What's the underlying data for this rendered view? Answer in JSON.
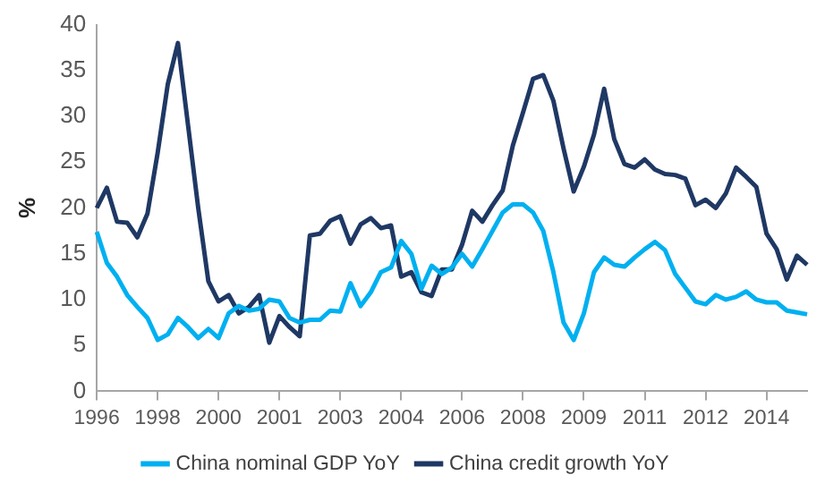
{
  "chart_data": {
    "type": "line",
    "ylabel": "%",
    "categories": [
      "1996",
      null,
      null,
      null,
      null,
      null,
      "1998",
      null,
      null,
      null,
      null,
      null,
      "2000",
      null,
      null,
      null,
      null,
      null,
      "2001",
      null,
      null,
      null,
      null,
      null,
      "2003",
      null,
      null,
      null,
      null,
      null,
      "2004",
      null,
      null,
      null,
      null,
      null,
      "2006",
      null,
      null,
      null,
      null,
      null,
      "2008",
      null,
      null,
      null,
      null,
      null,
      "2009",
      null,
      null,
      null,
      null,
      null,
      "2011",
      null,
      null,
      null,
      null,
      null,
      "2012",
      null,
      null,
      null,
      null,
      null,
      "2014",
      null,
      null,
      null,
      null
    ],
    "series": [
      {
        "name": "China nominal GDP YoY",
        "color": "#00b0f0",
        "values": [
          17.4,
          14,
          12.5,
          10.5,
          9.2,
          8,
          5.6,
          6.2,
          8,
          7,
          5.8,
          6.8,
          5.8,
          8.5,
          9.3,
          8.8,
          9,
          10,
          9.8,
          8,
          7.5,
          7.8,
          7.8,
          8.8,
          8.7,
          11.8,
          9.3,
          10.8,
          13,
          13.5,
          16.4,
          15,
          11.2,
          13.7,
          12.8,
          13.5,
          15,
          13.6,
          15.5,
          17.5,
          19.5,
          20.4,
          20.4,
          19.5,
          17.5,
          13,
          7.5,
          5.6,
          8.5,
          13,
          14.6,
          13.8,
          13.6,
          14.6,
          15.5,
          16.3,
          15.4,
          12.8,
          11.3,
          9.8,
          9.5,
          10.5,
          10,
          10.3,
          10.9,
          10,
          9.7,
          9.7,
          8.8,
          8.6,
          8.4
        ]
      },
      {
        "name": "China credit growth YoY",
        "color": "#1f3864",
        "values": [
          20,
          22.2,
          18.5,
          18.4,
          16.8,
          19.4,
          26,
          33.5,
          38,
          29,
          20,
          12,
          9.8,
          10.5,
          8.5,
          9.2,
          10.5,
          5.3,
          8.2,
          7,
          6,
          17,
          17.2,
          18.6,
          19.1,
          16.1,
          18.2,
          18.9,
          17.8,
          18.1,
          12.5,
          13,
          10.8,
          10.4,
          13.3,
          13.3,
          16,
          19.7,
          18.5,
          20.3,
          21.9,
          26.8,
          30.4,
          34.1,
          34.5,
          31.7,
          26.5,
          21.8,
          24.5,
          28,
          33,
          27.5,
          24.8,
          24.4,
          25.3,
          24.2,
          23.7,
          23.6,
          23.2,
          20.3,
          20.9,
          20,
          21.6,
          24.4,
          23.4,
          22.3,
          17.2,
          15.5,
          12.2,
          14.8,
          13.8
        ]
      }
    ],
    "ylim": [
      0,
      40
    ],
    "yticks": [
      0,
      5,
      10,
      15,
      20,
      25,
      30,
      35,
      40
    ],
    "grid": false,
    "legend": "bottom",
    "marker": "none",
    "line_style": "solid"
  }
}
